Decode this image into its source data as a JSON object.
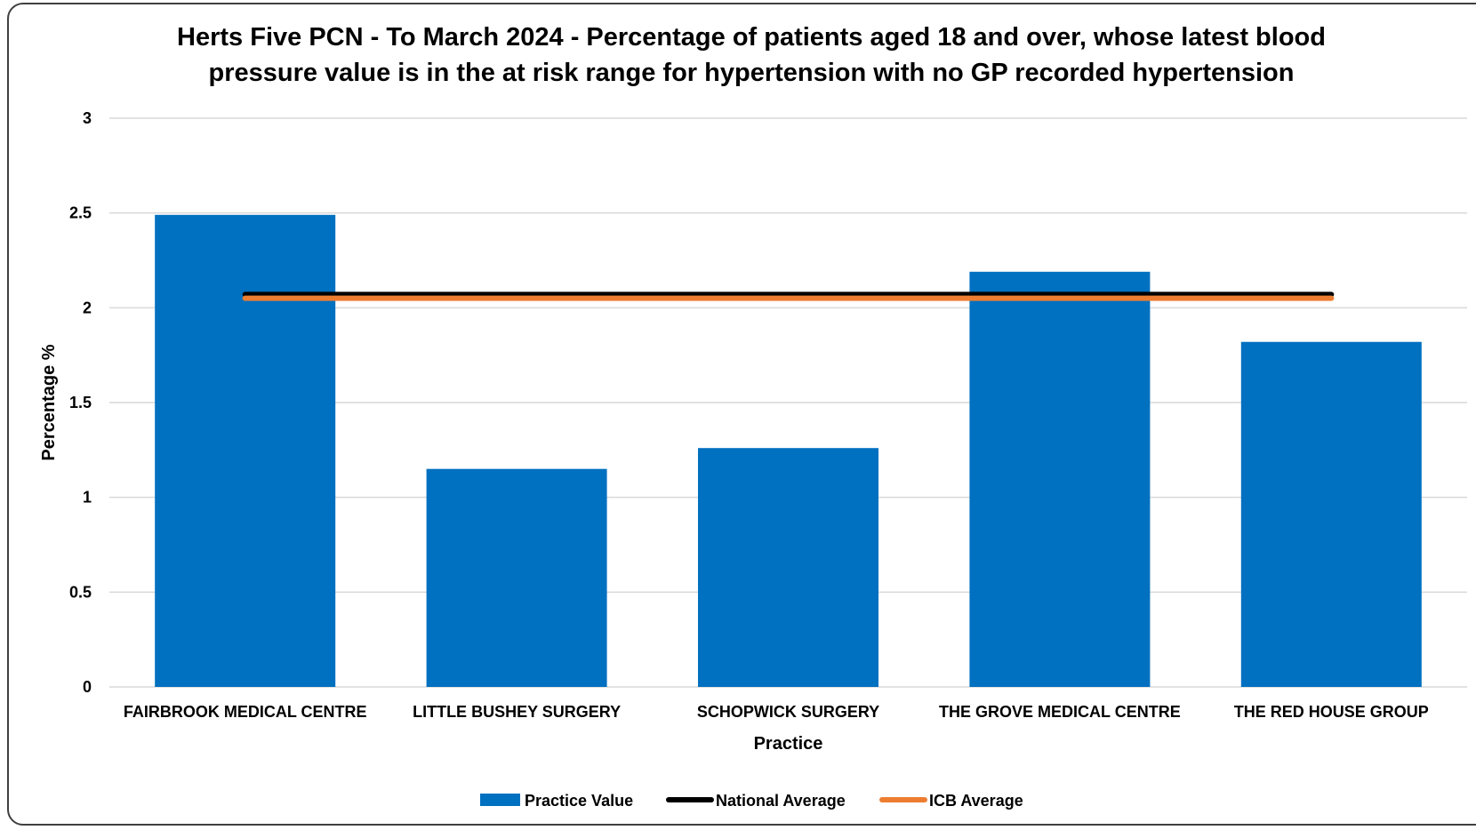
{
  "chart_data": {
    "type": "bar",
    "title_lines": [
      "Herts Five PCN - To March 2024 - Percentage of patients aged 18 and over, whose latest blood",
      "pressure value is in the at risk range for hypertension with no GP recorded hypertension"
    ],
    "xlabel": "Practice",
    "ylabel": "Percentage %",
    "ylim": [
      0,
      3
    ],
    "yticks": [
      "0",
      "0.5",
      "1",
      "1.5",
      "2",
      "2.5",
      "3"
    ],
    "categories": [
      "FAIRBROOK MEDICAL CENTRE",
      "LITTLE BUSHEY SURGERY",
      "SCHOPWICK SURGERY",
      "THE GROVE MEDICAL CENTRE",
      "THE RED HOUSE GROUP"
    ],
    "series": [
      {
        "name": "Practice Value",
        "kind": "bar",
        "color": "#0070C0",
        "values": [
          2.49,
          1.15,
          1.26,
          2.19,
          1.82
        ]
      },
      {
        "name": "National Average",
        "kind": "line",
        "color": "#000000",
        "values": [
          2.07,
          2.07,
          2.07,
          2.07,
          2.07
        ]
      },
      {
        "name": "ICB Average",
        "kind": "line",
        "color": "#ED7D31",
        "values": [
          2.05,
          2.05,
          2.05,
          2.05,
          2.05
        ]
      }
    ],
    "grid": true,
    "legend_position": "bottom"
  }
}
